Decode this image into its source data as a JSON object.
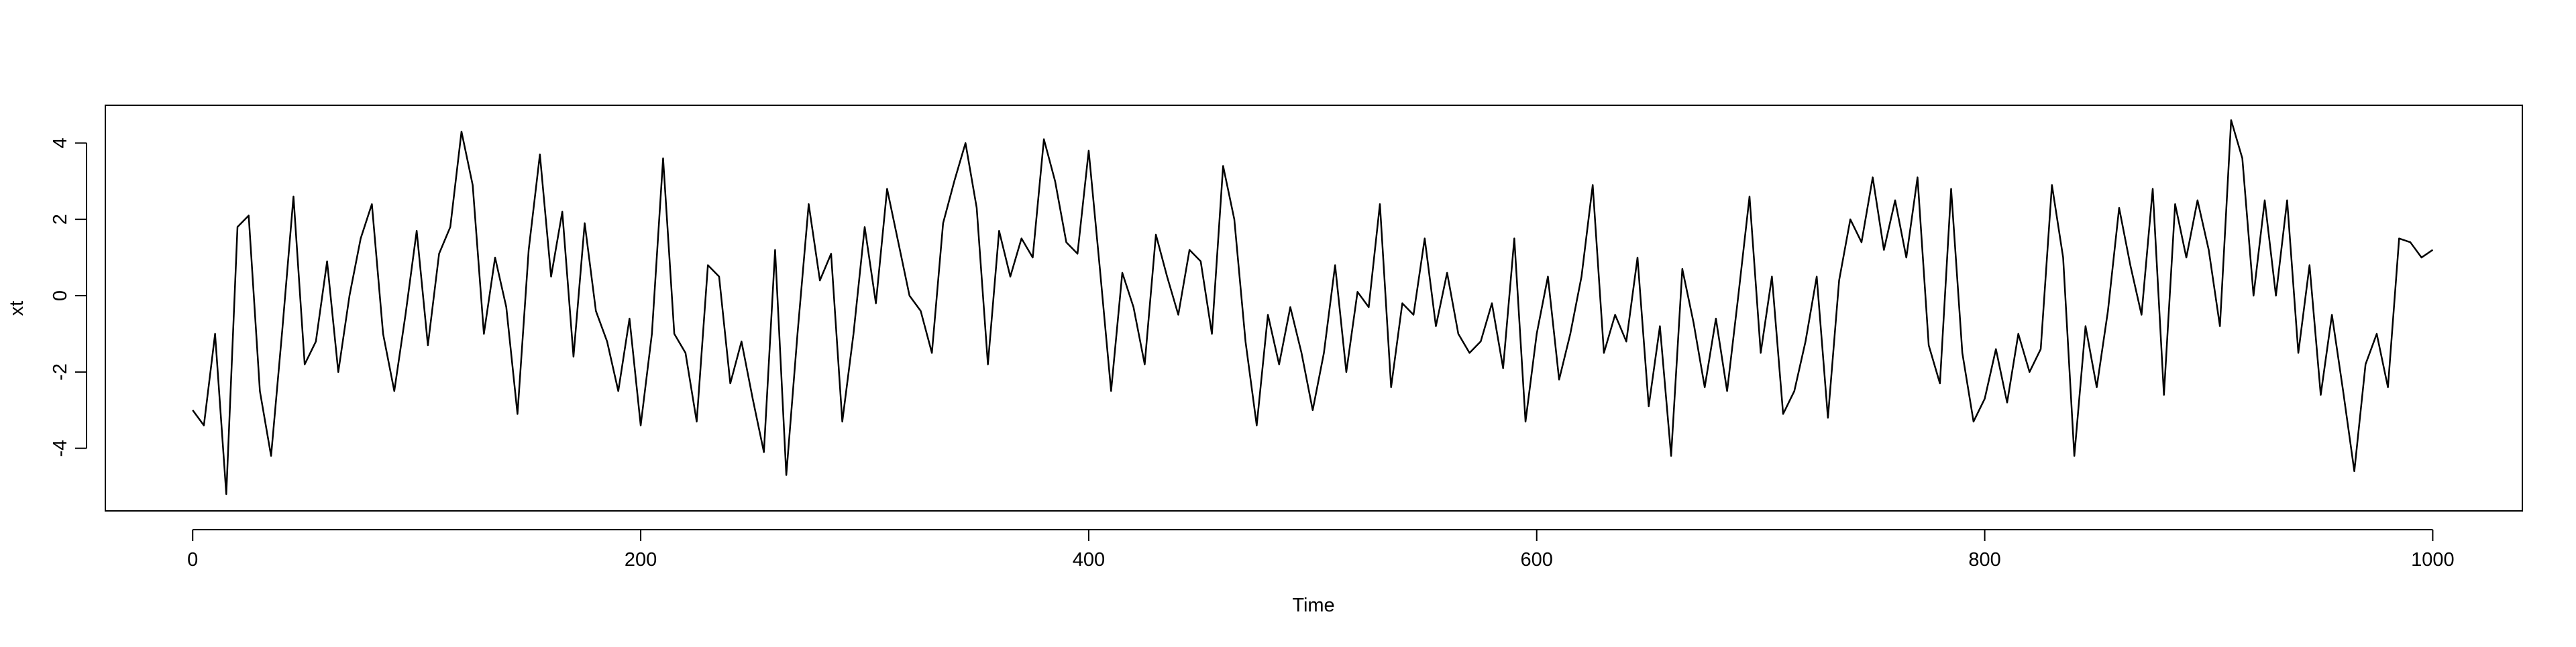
{
  "chart_data": {
    "type": "line",
    "xlabel": "Time",
    "ylabel": "xt",
    "x": [
      0,
      5,
      10,
      15,
      20,
      25,
      30,
      35,
      40,
      45,
      50,
      55,
      60,
      65,
      70,
      75,
      80,
      85,
      90,
      95,
      100,
      105,
      110,
      115,
      120,
      125,
      130,
      135,
      140,
      145,
      150,
      155,
      160,
      165,
      170,
      175,
      180,
      185,
      190,
      195,
      200,
      205,
      210,
      215,
      220,
      225,
      230,
      235,
      240,
      245,
      250,
      255,
      260,
      265,
      270,
      275,
      280,
      285,
      290,
      295,
      300,
      305,
      310,
      315,
      320,
      325,
      330,
      335,
      340,
      345,
      350,
      355,
      360,
      365,
      370,
      375,
      380,
      385,
      390,
      395,
      400,
      405,
      410,
      415,
      420,
      425,
      430,
      435,
      440,
      445,
      450,
      455,
      460,
      465,
      470,
      475,
      480,
      485,
      490,
      495,
      500,
      505,
      510,
      515,
      520,
      525,
      530,
      535,
      540,
      545,
      550,
      555,
      560,
      565,
      570,
      575,
      580,
      585,
      590,
      595,
      600,
      605,
      610,
      615,
      620,
      625,
      630,
      635,
      640,
      645,
      650,
      655,
      660,
      665,
      670,
      675,
      680,
      685,
      690,
      695,
      700,
      705,
      710,
      715,
      720,
      725,
      730,
      735,
      740,
      745,
      750,
      755,
      760,
      765,
      770,
      775,
      780,
      785,
      790,
      795,
      800,
      805,
      810,
      815,
      820,
      825,
      830,
      835,
      840,
      845,
      850,
      855,
      860,
      865,
      870,
      875,
      880,
      885,
      890,
      895,
      900,
      905,
      910,
      915,
      920,
      925,
      930,
      935,
      940,
      945,
      950,
      955,
      960,
      965,
      970,
      975,
      980,
      985,
      990,
      995,
      1000
    ],
    "series": [
      {
        "color": "#000000",
        "values": [
          -3.0,
          -3.4,
          -1.0,
          -5.2,
          1.8,
          2.1,
          -2.5,
          -4.2,
          -0.9,
          2.6,
          -1.8,
          -1.2,
          0.9,
          -2.0,
          0.0,
          1.5,
          2.4,
          -1.0,
          -2.5,
          -0.5,
          1.7,
          -1.3,
          1.1,
          1.8,
          4.3,
          2.9,
          -1.0,
          1.0,
          -0.3,
          -3.1,
          1.2,
          3.7,
          0.5,
          2.2,
          -1.6,
          1.9,
          -0.4,
          -1.2,
          -2.5,
          -0.6,
          -3.4,
          -1.0,
          3.6,
          -1.0,
          -1.5,
          -3.3,
          0.8,
          0.5,
          -2.3,
          -1.2,
          -2.7,
          -4.1,
          1.2,
          -4.7,
          -1.0,
          2.4,
          0.4,
          1.1,
          -3.3,
          -1.0,
          1.8,
          -0.2,
          2.8,
          1.4,
          0.0,
          -0.4,
          -1.5,
          1.9,
          3.0,
          4.0,
          2.3,
          -1.8,
          1.7,
          0.5,
          1.5,
          1.0,
          4.1,
          3.0,
          1.4,
          1.1,
          3.8,
          0.7,
          -2.5,
          0.6,
          -0.3,
          -1.8,
          1.6,
          0.5,
          -0.5,
          1.2,
          0.9,
          -1.0,
          3.4,
          2.0,
          -1.2,
          -3.4,
          -0.5,
          -1.8,
          -0.3,
          -1.5,
          -3.0,
          -1.5,
          0.8,
          -2.0,
          0.1,
          -0.3,
          2.4,
          -2.4,
          -0.2,
          -0.5,
          1.5,
          -0.8,
          0.6,
          -1.0,
          -1.5,
          -1.2,
          -0.2,
          -1.9,
          1.5,
          -3.3,
          -1.0,
          0.5,
          -2.2,
          -1.0,
          0.5,
          2.9,
          -1.5,
          -0.5,
          -1.2,
          1.0,
          -2.9,
          -0.8,
          -4.2,
          0.7,
          -0.7,
          -2.4,
          -0.6,
          -2.5,
          0.0,
          2.6,
          -1.5,
          0.5,
          -3.1,
          -2.5,
          -1.2,
          0.5,
          -3.2,
          0.4,
          2.0,
          1.4,
          3.1,
          1.2,
          2.5,
          1.0,
          3.1,
          -1.3,
          -2.3,
          2.8,
          -1.5,
          -3.3,
          -2.7,
          -1.4,
          -2.8,
          -1.0,
          -2.0,
          -1.4,
          2.9,
          1.0,
          -4.2,
          -0.8,
          -2.4,
          -0.4,
          2.3,
          0.8,
          -0.5,
          2.8,
          -2.6,
          2.4,
          1.0,
          2.5,
          1.2,
          -0.8,
          4.6,
          3.6,
          0.0,
          2.5,
          0.0,
          2.5,
          -1.5,
          0.8,
          -2.6,
          -0.5,
          -2.5,
          -4.6,
          -1.8,
          -1.0,
          -2.4,
          1.5,
          1.4,
          1.0,
          1.2
        ]
      }
    ],
    "xlim": [
      -39,
      1040
    ],
    "ylim": [
      -5.64,
      4.99
    ],
    "xticks": [
      0,
      200,
      400,
      600,
      800,
      1000
    ],
    "yticks": [
      -4,
      -2,
      0,
      2,
      4
    ]
  }
}
